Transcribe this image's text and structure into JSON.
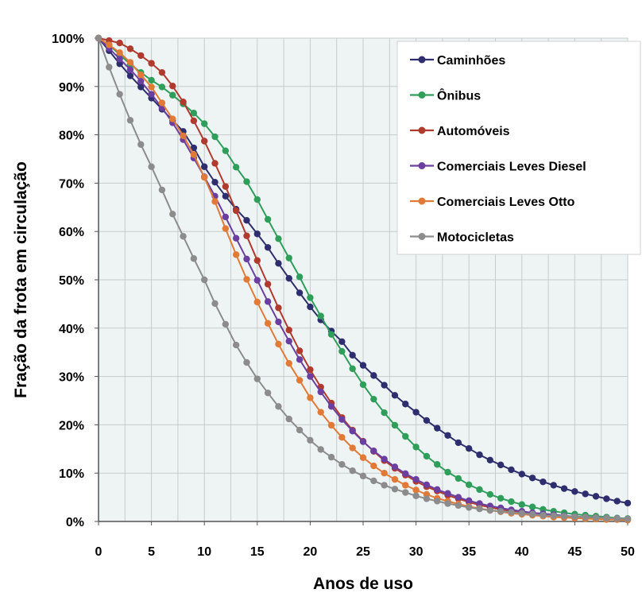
{
  "chart_data": {
    "type": "line",
    "title": "",
    "xlabel": "Anos de uso",
    "ylabel": "Fração da frota em circulação",
    "xlim": [
      0,
      50
    ],
    "ylim": [
      0,
      100
    ],
    "x_ticks": [
      "0",
      "5",
      "10",
      "15",
      "20",
      "25",
      "30",
      "35",
      "40",
      "45",
      "50"
    ],
    "y_ticks": [
      "0%",
      "10%",
      "20%",
      "30%",
      "40%",
      "50%",
      "60%",
      "70%",
      "80%",
      "90%",
      "100%"
    ],
    "grid": true,
    "legend_position": "top-right",
    "x": [
      0,
      1,
      2,
      3,
      4,
      5,
      6,
      7,
      8,
      9,
      10,
      11,
      12,
      13,
      14,
      15,
      16,
      17,
      18,
      19,
      20,
      21,
      22,
      23,
      24,
      25,
      26,
      27,
      28,
      29,
      30,
      31,
      32,
      33,
      34,
      35,
      36,
      37,
      38,
      39,
      40,
      41,
      42,
      43,
      44,
      45,
      46,
      47,
      48,
      49,
      50
    ],
    "series": [
      {
        "name": "Caminhões",
        "color": "#2e2e6e",
        "values": [
          100,
          97.4,
          94.7,
          92.2,
          89.9,
          87.6,
          85.3,
          83,
          80.7,
          77.3,
          73.4,
          70.2,
          67.3,
          64.6,
          62.3,
          59.5,
          56.7,
          53.4,
          50.3,
          47.3,
          44.4,
          41.7,
          39.4,
          37.2,
          34.4,
          32.3,
          30.2,
          28.2,
          26.1,
          24.3,
          22.6,
          20.9,
          19.3,
          17.8,
          16.3,
          15.1,
          13.8,
          12.7,
          11.7,
          10.7,
          9.8,
          9,
          8.2,
          7.5,
          6.8,
          6.2,
          5.7,
          5.2,
          4.7,
          4.2,
          3.8
        ]
      },
      {
        "name": "Ônibus",
        "color": "#2f9e5a",
        "values": [
          100,
          98.6,
          96.6,
          94.6,
          92.9,
          91.3,
          89.9,
          88.2,
          86.4,
          84.5,
          82.3,
          79.6,
          76.7,
          73.3,
          70.3,
          66.6,
          62.5,
          58.5,
          54.5,
          50.6,
          46.3,
          42.5,
          38.7,
          35.2,
          31.6,
          28.3,
          25.3,
          22.5,
          19.9,
          17.6,
          15.4,
          13.5,
          11.8,
          10.2,
          8.9,
          7.6,
          6.6,
          5.6,
          4.8,
          4.1,
          3.5,
          3,
          2.5,
          2.1,
          1.8,
          1.5,
          1.3,
          1.1,
          0.9,
          0.7,
          0.6
        ]
      },
      {
        "name": "Automóveis",
        "color": "#b03a2e",
        "values": [
          100,
          99.5,
          99,
          97.8,
          96.4,
          94.8,
          92.9,
          90.1,
          86.8,
          82.9,
          78.7,
          74.1,
          69.3,
          64.3,
          59.1,
          54,
          49.1,
          44.2,
          39.6,
          35.3,
          31.4,
          27.8,
          24.5,
          21.5,
          18.9,
          16.6,
          14.5,
          12.6,
          11,
          9.6,
          8.3,
          7.2,
          6.3,
          5.4,
          4.7,
          4,
          3.4,
          2.9,
          2.5,
          2.1,
          1.8,
          1.5,
          1.3,
          1.1,
          0.9,
          0.8,
          0.7,
          0.6,
          0.5,
          0.4,
          0.3
        ]
      },
      {
        "name": "Comerciais Leves Diesel",
        "color": "#6a3fa0",
        "values": [
          100,
          97.9,
          95.7,
          93.5,
          91.1,
          88.4,
          85.6,
          82.5,
          79,
          75.2,
          71.3,
          67.3,
          63,
          58.6,
          54.3,
          49.9,
          45.5,
          41.3,
          37.3,
          33.5,
          30,
          26.8,
          23.8,
          21.1,
          18.7,
          16.5,
          14.6,
          12.9,
          11.3,
          9.9,
          8.7,
          7.6,
          6.6,
          5.8,
          5,
          4.3,
          3.7,
          3.2,
          2.8,
          2.4,
          2.1,
          1.8,
          1.6,
          1.4,
          1.2,
          1,
          0.9,
          0.8,
          0.7,
          0.6,
          0.5
        ]
      },
      {
        "name": "Comerciais Leves Otto",
        "color": "#e07a36",
        "values": [
          100,
          98.6,
          97,
          95,
          92.4,
          89.9,
          86.6,
          83.3,
          79.8,
          75.9,
          71.2,
          66.2,
          60.6,
          55.2,
          50.1,
          45.4,
          41,
          36.7,
          32.7,
          29.2,
          25.6,
          22.6,
          19.9,
          17.4,
          15.2,
          13.2,
          11.5,
          10,
          8.7,
          7.5,
          6.5,
          5.6,
          4.8,
          4.2,
          3.6,
          3.1,
          2.7,
          2.3,
          2,
          1.7,
          1.5,
          1.3,
          1.1,
          0.9,
          0.8,
          0.7,
          0.6,
          0.5,
          0.4,
          0.4,
          0.3
        ]
      },
      {
        "name": "Motocicletas",
        "color": "#8c8c8c",
        "values": [
          100,
          94,
          88.4,
          83,
          78,
          73.4,
          68.6,
          63.6,
          59,
          54.4,
          50,
          45.1,
          40.8,
          36.5,
          32.9,
          29.5,
          26.6,
          23.8,
          21.2,
          18.9,
          16.8,
          14.9,
          13.3,
          11.8,
          10.5,
          9.4,
          8.4,
          7.5,
          6.7,
          6,
          5.3,
          4.7,
          4.2,
          3.7,
          3.3,
          2.9,
          2.6,
          2.3,
          2.1,
          1.9,
          1.7,
          1.5,
          1.3,
          1.2,
          1.1,
          1,
          0.9,
          0.8,
          0.7,
          0.6,
          0.5
        ]
      }
    ]
  }
}
